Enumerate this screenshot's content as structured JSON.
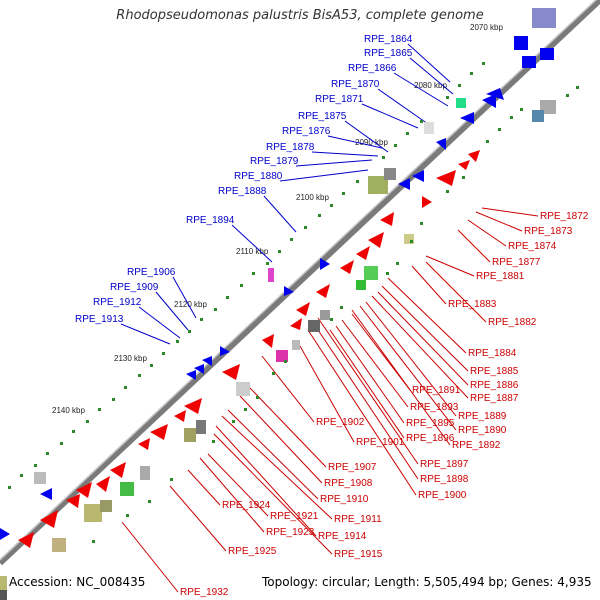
{
  "title": "Rhodopseudomonas palustris BisA53, complete genome",
  "footer": {
    "accession": "Accession: NC_008435",
    "topology": "Topology: circular; Length: 5,505,494 bp; Genes: 4,935"
  },
  "colors": {
    "backbone": "#7a7a7a",
    "forward_label": "#0000cc",
    "reverse_label": "#cc0000",
    "cds_forward": "#0000ee",
    "cds_reverse": "#ee0000",
    "tick_dot": "#2a8a2a"
  },
  "ticks": [
    "2070 kbp",
    "2080 kbp",
    "2090 kbp",
    "2100 kbp",
    "2110 kbp",
    "2120 kbp",
    "2130 kbp",
    "2140 kbp"
  ],
  "labels_forward": [
    "RPE_1864",
    "RPE_1865",
    "RPE_1866",
    "RPE_1870",
    "RPE_1871",
    "RPE_1875",
    "RPE_1876",
    "RPE_1878",
    "RPE_1879",
    "RPE_1880",
    "RPE_1888",
    "RPE_1894",
    "RPE_1906",
    "RPE_1909",
    "RPE_1912",
    "RPE_1913"
  ],
  "labels_reverse": [
    "RPE_1872",
    "RPE_1873",
    "RPE_1874",
    "RPE_1877",
    "RPE_1881",
    "RPE_1883",
    "RPE_1882",
    "RPE_1884",
    "RPE_1885",
    "RPE_1886",
    "RPE_1891",
    "RPE_1887",
    "RPE_1893",
    "RPE_1889",
    "RPE_1895",
    "RPE_1890",
    "RPE_1896",
    "RPE_1892",
    "RPE_1902",
    "RPE_1901",
    "RPE_1897",
    "RPE_1907",
    "RPE_1898",
    "RPE_1908",
    "RPE_1910",
    "RPE_1900",
    "RPE_1924",
    "RPE_1921",
    "RPE_1911",
    "RPE_1923",
    "RPE_1914",
    "RPE_1925",
    "RPE_1915",
    "RPE_1932"
  ]
}
